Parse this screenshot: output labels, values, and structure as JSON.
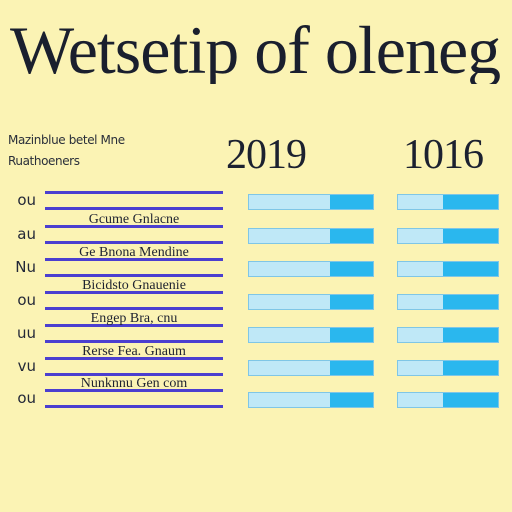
{
  "title": "Wetsetip of olenegen",
  "header": {
    "label_line1": "Mazinblue betel Mne",
    "label_line2": "Ruathoeners",
    "year_a": "2019",
    "year_b": "1016"
  },
  "rows": [
    {
      "label": "ou",
      "name": "",
      "value_a": 0.35,
      "value_b": 0.55
    },
    {
      "label": "au",
      "name": "Gcume Gnlacne",
      "value_a": 0.35,
      "value_b": 0.55
    },
    {
      "label": "Nu",
      "name": "Ge Bnona Mendine",
      "value_a": 0.35,
      "value_b": 0.55
    },
    {
      "label": "ou",
      "name": "Bicidsto Gnauenie",
      "value_a": 0.35,
      "value_b": 0.55
    },
    {
      "label": "uu",
      "name": "Engep Bra, cnu",
      "value_a": 0.35,
      "value_b": 0.55
    },
    {
      "label": "vu",
      "name": "Rerse Fea. Gnaum",
      "value_a": 0.35,
      "value_b": 0.55
    },
    {
      "label": "ou",
      "name": "Nunknnu Gen com",
      "value_a": 0.35,
      "value_b": 0.55
    }
  ],
  "colors": {
    "background": "#fbf3b4",
    "name_bar_border": "#4b3fcf",
    "value_bar_fill": "#2ab7ee",
    "value_bar_track": "#bfe8f7"
  }
}
